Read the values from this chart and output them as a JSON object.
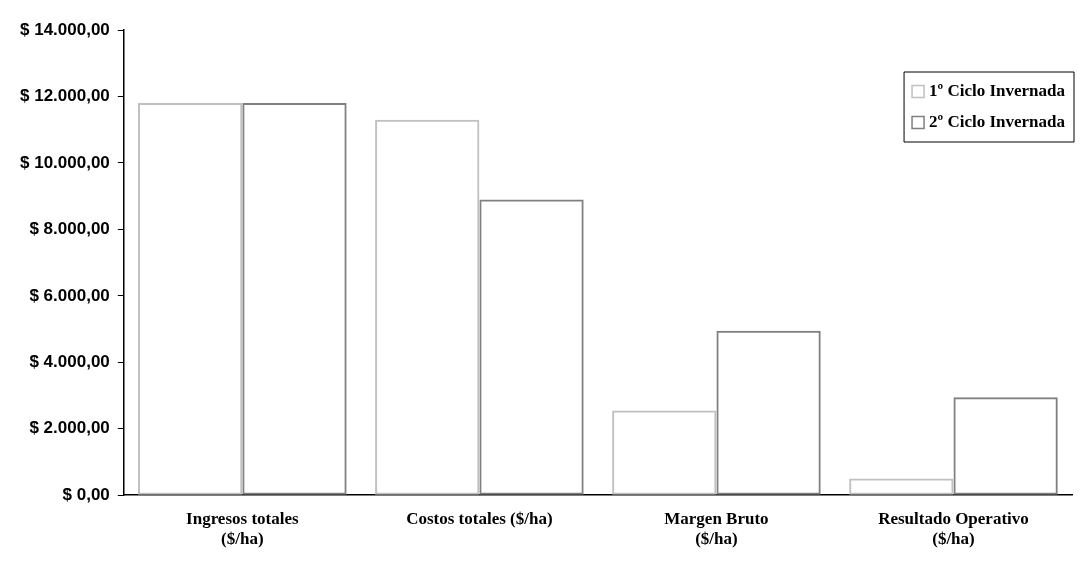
{
  "chart_data": {
    "type": "bar",
    "categories": [
      "Ingresos totales\n($/ha)",
      "Costos totales ($/ha)",
      "Margen Bruto\n($/ha)",
      "Resultado Operativo\n($/ha)"
    ],
    "series": [
      {
        "name": "1º Ciclo Invernada",
        "color": "#c0c0c0",
        "values": [
          11800,
          11300,
          2550,
          500
        ]
      },
      {
        "name": "2º Ciclo Invernada",
        "color": "#808080",
        "values": [
          11800,
          8900,
          4950,
          2950
        ]
      }
    ],
    "ylim": [
      0,
      14000
    ],
    "yticks": [
      {
        "value": 0,
        "label": "$ 0,00"
      },
      {
        "value": 2000,
        "label": "$ 2.000,00"
      },
      {
        "value": 4000,
        "label": "$ 4.000,00"
      },
      {
        "value": 6000,
        "label": "$ 6.000,00"
      },
      {
        "value": 8000,
        "label": "$ 8.000,00"
      },
      {
        "value": 10000,
        "label": "$ 10.000,00"
      },
      {
        "value": 12000,
        "label": "$ 12.000,00"
      },
      {
        "value": 14000,
        "label": "$ 14.000,00"
      }
    ],
    "grid": false,
    "legend": "top right"
  }
}
